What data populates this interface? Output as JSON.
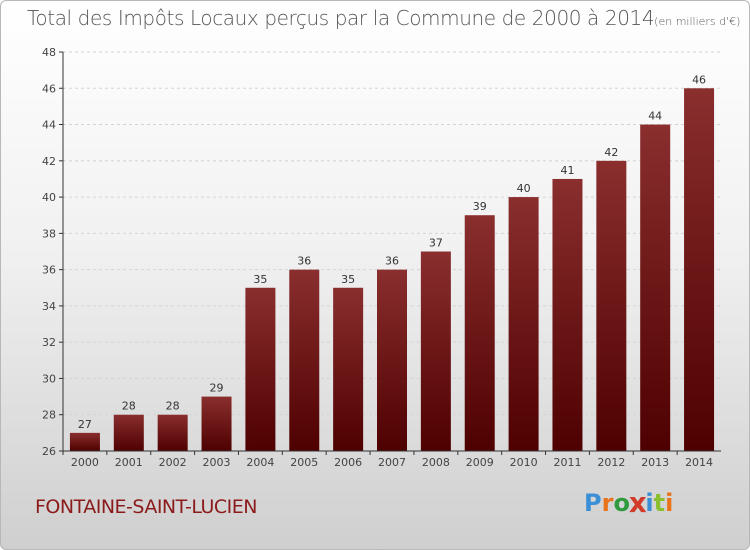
{
  "header": {
    "title": "Total des Impôts Locaux perçus par la Commune de 2000 à 2014",
    "unit": "(en milliers d'€)"
  },
  "footer": {
    "commune": "FONTAINE-SAINT-LUCIEN",
    "brand": "Proxiti",
    "brand_letters": [
      "P",
      "r",
      "o",
      "x",
      "i",
      "t",
      "i"
    ],
    "brand_colors": [
      "#3a8fd6",
      "#e8731a",
      "#2f9a3e",
      "#d23a2a",
      "#3a8fd6",
      "#8bbf2f",
      "#e8731a"
    ]
  },
  "colors": {
    "bar_top": "#8a2e2e",
    "bar_bottom": "#4e0000",
    "axis": "#333333"
  },
  "chart_data": {
    "type": "bar",
    "title": "Total des Impôts Locaux perçus par la Commune de 2000 à 2014",
    "ylabel": "en milliers d'€",
    "xlabel": "",
    "grid": true,
    "ylim": [
      26,
      48
    ],
    "yticks": [
      26,
      28,
      30,
      32,
      34,
      36,
      38,
      40,
      42,
      44,
      46,
      48
    ],
    "categories": [
      "2000",
      "2001",
      "2002",
      "2003",
      "2004",
      "2005",
      "2006",
      "2007",
      "2008",
      "2009",
      "2010",
      "2011",
      "2012",
      "2013",
      "2014"
    ],
    "values": [
      27,
      28,
      28,
      29,
      35,
      36,
      35,
      36,
      37,
      39,
      40,
      41,
      42,
      44,
      46
    ]
  }
}
